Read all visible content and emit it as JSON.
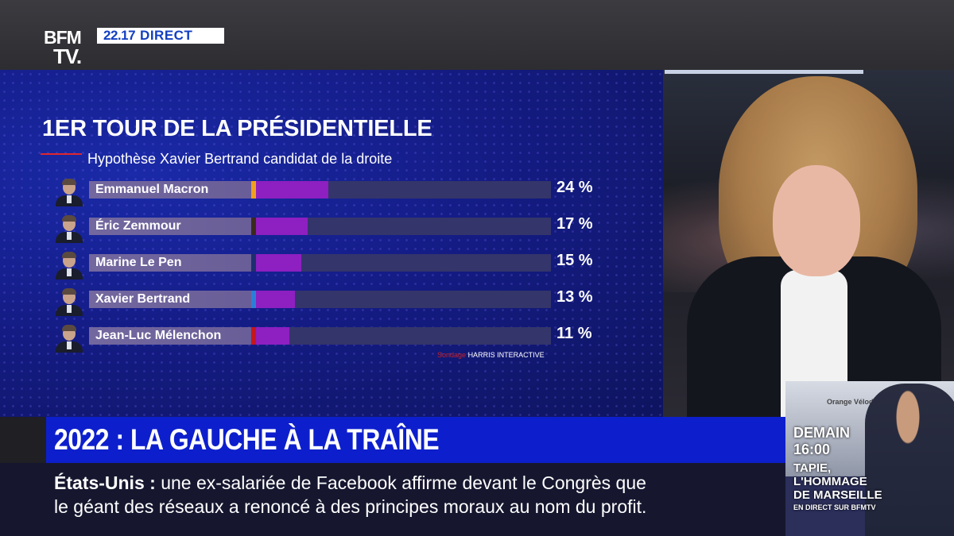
{
  "channel": {
    "logo_line1": "BFM",
    "logo_line2": "TV.",
    "time": "22.17",
    "live_label": "DIRECT"
  },
  "graphic": {
    "title": "1ER TOUR DE LA PRÉSIDENTIELLE",
    "subtitle": "Hypothèse Xavier Bertrand candidat de la droite",
    "source_prefix": "Sondage",
    "source": "HARRIS INTERACTIVE"
  },
  "chart_data": {
    "type": "bar",
    "title": "1ER TOUR DE LA PRÉSIDENTIELLE",
    "subtitle": "Hypothèse Xavier Bertrand candidat de la droite",
    "categories": [
      "Emmanuel Macron",
      "Éric Zemmour",
      "Marine Le Pen",
      "Xavier Bertrand",
      "Jean-Luc Mélenchon"
    ],
    "values": [
      24,
      17,
      15,
      13,
      11
    ],
    "value_labels": [
      "24 %",
      "17 %",
      "15 %",
      "13 %",
      "11 %"
    ],
    "party_colors": [
      "#f0a01e",
      "#3a2a1c",
      "#1e2f6e",
      "#2a7fd8",
      "#c5171c"
    ],
    "bar_color": "#8e1fc1",
    "ylim": [
      0,
      100
    ]
  },
  "headline": "2022 : LA GAUCHE À LA TRAÎNE",
  "ticker": {
    "label": "États-Unis :",
    "line1": "une ex-salariée de Facebook affirme devant le Congrès que",
    "line2": "le géant des réseaux a renoncé à des principes moraux au nom du profit."
  },
  "promo": {
    "stadium_text": "Orange Vélodrome",
    "demain": "DEMAIN",
    "time": "16:00",
    "title_line1": "TAPIE,",
    "title_line2": "L'HOMMAGE",
    "title_line3": "DE MARSEILLE",
    "subtitle": "EN DIRECT SUR BFMTV"
  }
}
